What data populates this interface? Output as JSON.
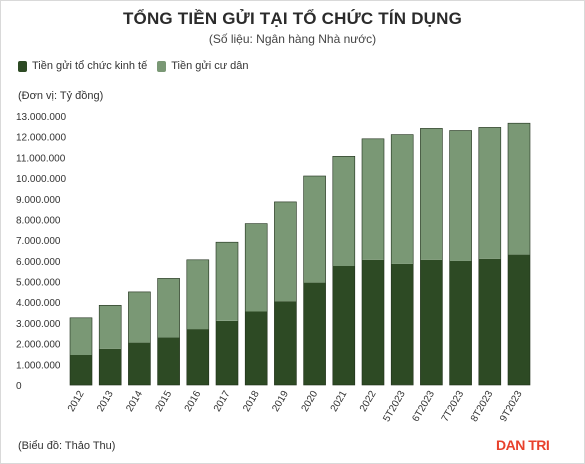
{
  "header": {
    "title": "TỔNG TIỀN GỬI TẠI TỔ CHỨC TÍN DỤNG",
    "subtitle": "(Số liệu: Ngân hàng Nhà nước)"
  },
  "legend": {
    "items": [
      {
        "label": "Tiền gửi tổ chức kinh tế",
        "color": "#2d4a24"
      },
      {
        "label": "Tiền gửi cư dân",
        "color": "#7a9875"
      }
    ]
  },
  "unit_label": "(Đơn vị: Tỷ đồng)",
  "footer": {
    "source": "(Biểu đồ: Thảo Thu)",
    "brand": "DAN TRI"
  },
  "chart_data": {
    "type": "bar",
    "stacked": true,
    "categories": [
      "2012",
      "2013",
      "2014",
      "2015",
      "2016",
      "2017",
      "2018",
      "2019",
      "2020",
      "2021",
      "2022",
      "5T2023",
      "6T2023",
      "7T2023",
      "8T2023",
      "9T2023"
    ],
    "series": [
      {
        "name": "Tiền gửi tổ chức kinh tế",
        "color": "#2d4a24",
        "values": [
          1450000,
          1750000,
          2050000,
          2300000,
          2700000,
          3100000,
          3550000,
          4050000,
          4950000,
          5750000,
          6050000,
          5850000,
          6050000,
          6000000,
          6100000,
          6300000
        ]
      },
      {
        "name": "Tiền gửi cư dân",
        "color": "#7a9875",
        "values": [
          1800000,
          2100000,
          2450000,
          2850000,
          3350000,
          3800000,
          4250000,
          4800000,
          5150000,
          5300000,
          5850000,
          6250000,
          6350000,
          6300000,
          6350000,
          6350000
        ]
      }
    ],
    "yticks": [
      "0",
      "1.000.000",
      "2.000.000",
      "3.000.000",
      "4.000.000",
      "5.000.000",
      "6.000.000",
      "7.000.000",
      "8.000.000",
      "9.000.000",
      "10.000.000",
      "11.000.000",
      "12.000.000",
      "13.000.000"
    ],
    "ylim": [
      0,
      13000000
    ],
    "grid": false,
    "legend_position": "top-left"
  }
}
